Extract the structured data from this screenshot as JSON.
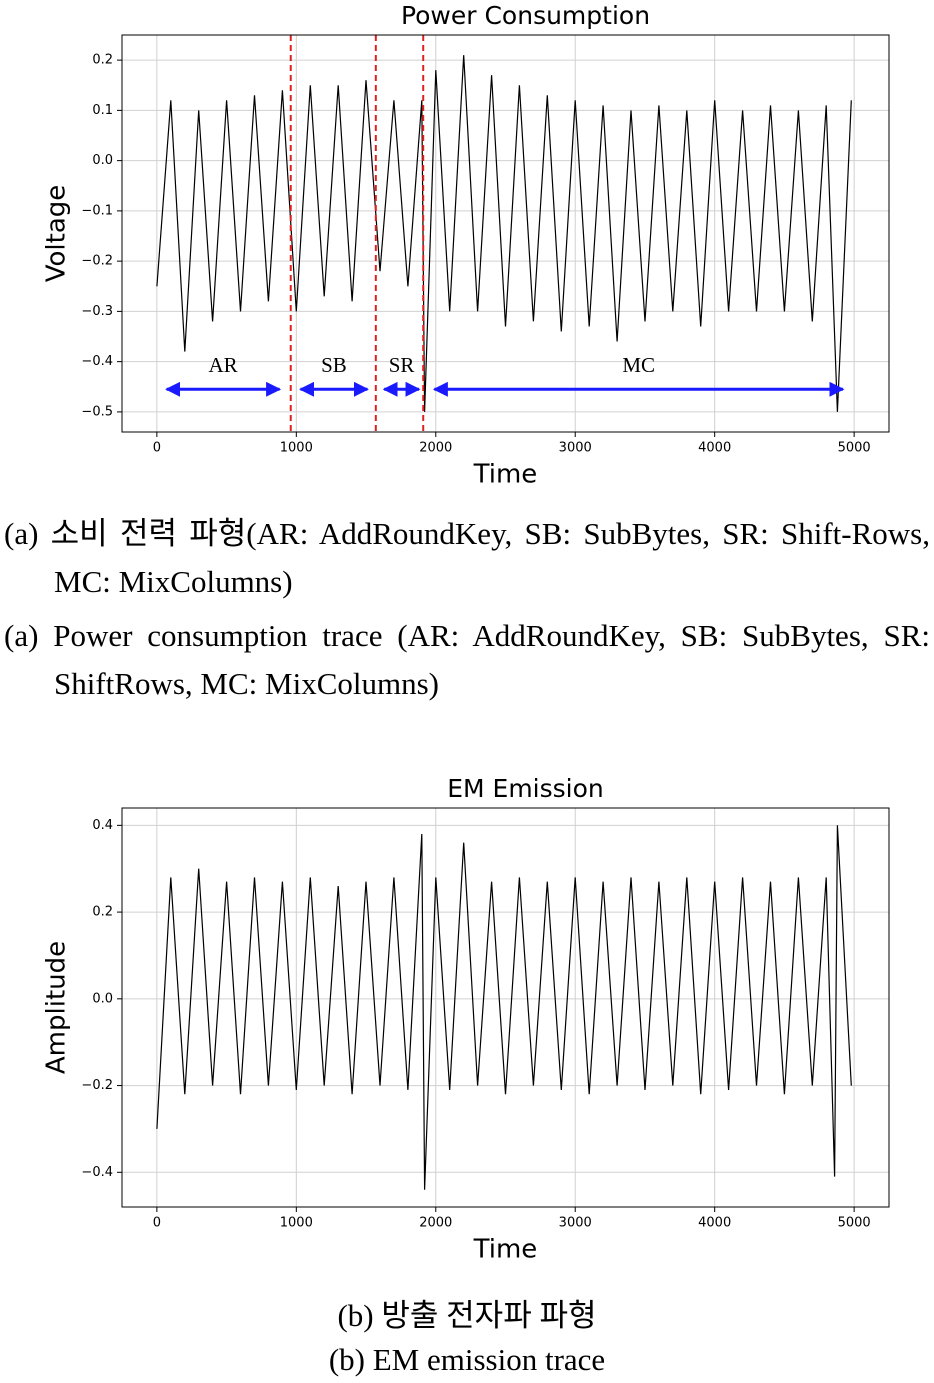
{
  "chart_data": [
    {
      "type": "line",
      "title": "Power Consumption",
      "xlabel": "Time",
      "ylabel": "Voltage",
      "color": "#000000",
      "grid": true,
      "xlim": [
        -250,
        5250
      ],
      "xticks": [
        0,
        1000,
        2000,
        3000,
        4000,
        5000
      ],
      "ylim": [
        -0.54,
        0.25
      ],
      "yticks": [
        {
          "value": -0.5,
          "label": "−0.5"
        },
        {
          "value": -0.4,
          "label": "−0.4"
        },
        {
          "value": -0.3,
          "label": "−0.3"
        },
        {
          "value": -0.2,
          "label": "−0.2"
        },
        {
          "value": -0.1,
          "label": "−0.1"
        },
        {
          "value": 0,
          "label": "0.0"
        },
        0.1,
        0.2
      ],
      "x": [
        0,
        100,
        200,
        300,
        400,
        500,
        600,
        700,
        800,
        900,
        1000,
        1100,
        1200,
        1300,
        1400,
        1500,
        1600,
        1700,
        1800,
        1900,
        1920,
        2000,
        2100,
        2200,
        2300,
        2400,
        2500,
        2600,
        2700,
        2800,
        2900,
        3000,
        3100,
        3200,
        3300,
        3400,
        3500,
        3600,
        3700,
        3800,
        3900,
        4000,
        4100,
        4200,
        4300,
        4400,
        4500,
        4600,
        4700,
        4800,
        4880,
        4980
      ],
      "values": [
        -0.25,
        0.12,
        -0.38,
        0.1,
        -0.32,
        0.12,
        -0.3,
        0.13,
        -0.28,
        0.14,
        -0.3,
        0.15,
        -0.27,
        0.15,
        -0.28,
        0.16,
        -0.22,
        0.12,
        -0.25,
        0.12,
        -0.5,
        0.18,
        -0.3,
        0.21,
        -0.3,
        0.17,
        -0.33,
        0.15,
        -0.32,
        0.13,
        -0.34,
        0.12,
        -0.33,
        0.11,
        -0.36,
        0.1,
        -0.32,
        0.11,
        -0.3,
        0.1,
        -0.33,
        0.12,
        -0.3,
        0.1,
        -0.3,
        0.11,
        -0.3,
        0.1,
        -0.32,
        0.11,
        -0.5,
        0.12
      ],
      "vlines": [
        960,
        1570,
        1910
      ],
      "vline_color": "#e02020",
      "arrow_color": "#1a1aff",
      "annotations": [
        {
          "label": "AR",
          "x": [
            70,
            880
          ],
          "y": -0.455
        },
        {
          "label": "SB",
          "x": [
            1030,
            1510
          ],
          "y": -0.455
        },
        {
          "label": "SR",
          "x": [
            1630,
            1880
          ],
          "y": -0.455
        },
        {
          "label": "MC",
          "x": [
            1990,
            4920
          ],
          "y": -0.455
        }
      ]
    },
    {
      "type": "line",
      "title": "EM Emission",
      "xlabel": "Time",
      "ylabel": "Amplitude",
      "color": "#000000",
      "grid": true,
      "xlim": [
        -250,
        5250
      ],
      "xticks": [
        0,
        1000,
        2000,
        3000,
        4000,
        5000
      ],
      "ylim": [
        -0.48,
        0.44
      ],
      "yticks": [
        {
          "value": -0.4,
          "label": "−0.4"
        },
        {
          "value": -0.2,
          "label": "−0.2"
        },
        {
          "value": 0,
          "label": "0.0"
        },
        0.2,
        0.4
      ],
      "x": [
        0,
        100,
        200,
        300,
        400,
        500,
        600,
        700,
        800,
        900,
        1000,
        1100,
        1200,
        1300,
        1400,
        1500,
        1600,
        1700,
        1800,
        1900,
        1920,
        2000,
        2100,
        2200,
        2300,
        2400,
        2500,
        2600,
        2700,
        2800,
        2900,
        3000,
        3100,
        3200,
        3300,
        3400,
        3500,
        3600,
        3700,
        3800,
        3900,
        4000,
        4100,
        4200,
        4300,
        4400,
        4500,
        4600,
        4700,
        4800,
        4860,
        4880,
        4980
      ],
      "values": [
        -0.3,
        0.28,
        -0.22,
        0.3,
        -0.2,
        0.27,
        -0.22,
        0.28,
        -0.2,
        0.27,
        -0.21,
        0.28,
        -0.2,
        0.26,
        -0.22,
        0.27,
        -0.2,
        0.28,
        -0.21,
        0.38,
        -0.44,
        0.28,
        -0.21,
        0.36,
        -0.2,
        0.27,
        -0.22,
        0.28,
        -0.2,
        0.27,
        -0.21,
        0.28,
        -0.22,
        0.27,
        -0.2,
        0.28,
        -0.21,
        0.27,
        -0.2,
        0.28,
        -0.22,
        0.27,
        -0.21,
        0.28,
        -0.2,
        0.27,
        -0.22,
        0.28,
        -0.2,
        0.28,
        -0.41,
        0.4,
        -0.2
      ]
    }
  ],
  "captions": {
    "a_ko": "(a) 소비 전력 파형(AR: AddRoundKey, SB: SubBytes, SR: Shift-Rows, MC: MixColumns)",
    "a_en": "(a) Power consumption trace (AR: AddRoundKey, SB: SubBytes, SR: ShiftRows, MC: MixColumns)",
    "b_ko": "(b) 방출 전자파 파형",
    "b_en": "(b) EM emission trace"
  }
}
